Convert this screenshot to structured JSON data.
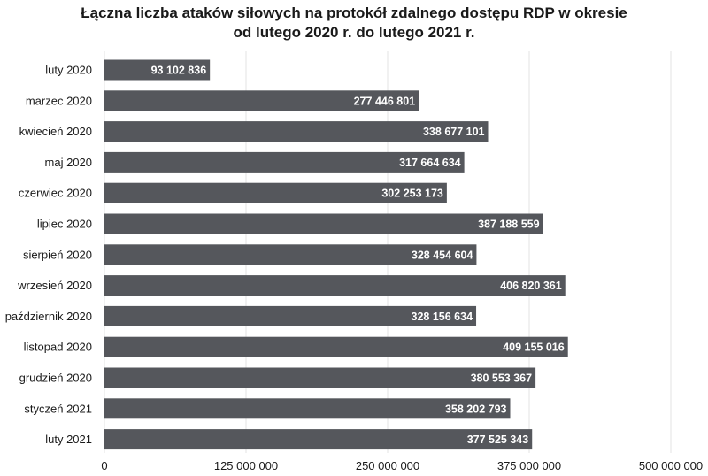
{
  "chart_data": {
    "type": "bar",
    "orientation": "horizontal",
    "title_line1": "Łączna liczba ataków siłowych na protokół zdalnego dostępu RDP w okresie",
    "title_line2": "od lutego 2020 r. do lutego 2021 r.",
    "categories": [
      "luty 2020",
      "marzec 2020",
      "kwiecień 2020",
      "maj 2020",
      "czerwiec 2020",
      "lipiec 2020",
      "sierpień 2020",
      "wrzesień 2020",
      "październik 2020",
      "listopad 2020",
      "grudzień 2020",
      "styczeń 2021",
      "luty 2021"
    ],
    "values": [
      93102836,
      277446801,
      338677101,
      317664634,
      302253173,
      387188559,
      328454604,
      406820361,
      328156634,
      409155016,
      380553367,
      358202793,
      377525343
    ],
    "value_labels": [
      "93 102 836",
      "277 446 801",
      "338 677 101",
      "317 664 634",
      "302 253 173",
      "387 188 559",
      "328 454 604",
      "406 820 361",
      "328 156 634",
      "409 155 016",
      "380 553 367",
      "358 202 793",
      "377 525 343"
    ],
    "xlim": [
      0,
      500000000
    ],
    "x_ticks": [
      0,
      125000000,
      250000000,
      375000000,
      500000000
    ],
    "x_tick_labels": [
      "0",
      "125 000 000",
      "250 000 000",
      "375 000 000",
      "500 000 000"
    ],
    "grid": true,
    "bar_color": "#55575c",
    "grid_color": "#e3e3e3"
  }
}
